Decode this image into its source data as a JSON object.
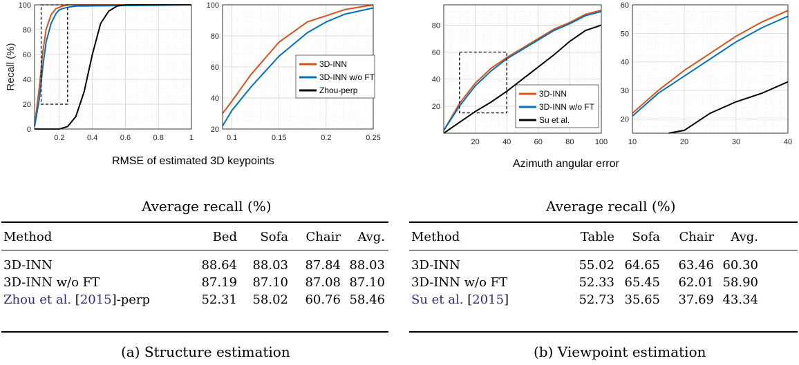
{
  "colors": {
    "inn": "#d95319",
    "inn_noft": "#0072bd",
    "base": "#000000"
  },
  "plots": {
    "a_left": {
      "ylabel": "Recall (%)",
      "xticks": [
        "0.2",
        "0.4",
        "0.6",
        "0.8",
        "1"
      ],
      "yticks": [
        "0",
        "20",
        "40",
        "60",
        "80",
        "100"
      ]
    },
    "a_right": {
      "xticks": [
        "0.1",
        "0.15",
        "0.2",
        "0.25"
      ],
      "yticks": [
        "20",
        "40",
        "60",
        "80",
        "100"
      ]
    },
    "a_legend": [
      "3D-INN",
      "3D-INN w/o FT",
      "Zhou-perp"
    ],
    "a_xlabel": "RMSE of estimated 3D keypoints",
    "b_left": {
      "xticks": [
        "20",
        "40",
        "60",
        "80",
        "100"
      ],
      "yticks": [
        "20",
        "40",
        "60",
        "80"
      ]
    },
    "b_right": {
      "xticks": [
        "10",
        "20",
        "30",
        "40"
      ],
      "yticks": [
        "20",
        "30",
        "40",
        "50",
        "60"
      ]
    },
    "b_legend": [
      "3D-INN",
      "3D-INN w/o FT",
      "Su et al."
    ],
    "b_xlabel": "Azimuth angular error"
  },
  "chart_data": [
    {
      "type": "line",
      "ylabel": "Recall (%)",
      "xlabel": "RMSE of estimated 3D keypoints",
      "xlim": [
        0.05,
        1
      ],
      "ylim": [
        0,
        100
      ],
      "grid": true,
      "series": [
        {
          "name": "3D-INN",
          "x": [
            0.05,
            0.08,
            0.1,
            0.12,
            0.15,
            0.18,
            0.2,
            0.22,
            0.25,
            0.3,
            1
          ],
          "y": [
            3,
            35,
            62,
            80,
            92,
            97,
            98,
            99,
            100,
            100,
            100
          ]
        },
        {
          "name": "3D-INN w/o FT",
          "x": [
            0.05,
            0.08,
            0.1,
            0.12,
            0.15,
            0.18,
            0.2,
            0.22,
            0.25,
            0.3,
            1
          ],
          "y": [
            2,
            25,
            50,
            70,
            85,
            93,
            96,
            97,
            98,
            99,
            100
          ]
        },
        {
          "name": "Zhou-perp",
          "x": [
            0.05,
            0.2,
            0.25,
            0.3,
            0.35,
            0.4,
            0.45,
            0.5,
            0.55,
            0.6,
            1
          ],
          "y": [
            0,
            0,
            2,
            10,
            30,
            60,
            85,
            95,
            99,
            100,
            100
          ]
        }
      ]
    },
    {
      "type": "line",
      "xlim": [
        0.09,
        0.25
      ],
      "ylim": [
        20,
        100
      ],
      "grid": true,
      "series": [
        {
          "name": "3D-INN",
          "x": [
            0.09,
            0.1,
            0.12,
            0.15,
            0.18,
            0.2,
            0.22,
            0.25
          ],
          "y": [
            30,
            38,
            55,
            76,
            89,
            93,
            97,
            100
          ]
        },
        {
          "name": "3D-INN w/o FT",
          "x": [
            0.09,
            0.1,
            0.12,
            0.15,
            0.18,
            0.2,
            0.22,
            0.25
          ],
          "y": [
            22,
            32,
            47,
            67,
            82,
            89,
            94,
            98
          ]
        }
      ]
    },
    {
      "type": "line",
      "xlabel": "Azimuth angular error",
      "xlim": [
        0,
        100
      ],
      "ylim": [
        0,
        95
      ],
      "grid": true,
      "series": [
        {
          "name": "3D-INN",
          "x": [
            0,
            10,
            20,
            30,
            40,
            50,
            60,
            70,
            80,
            90,
            100
          ],
          "y": [
            2,
            22,
            37,
            48,
            56,
            63,
            70,
            77,
            82,
            88,
            91
          ]
        },
        {
          "name": "3D-INN w/o FT",
          "x": [
            0,
            10,
            20,
            30,
            40,
            50,
            60,
            70,
            80,
            90,
            100
          ],
          "y": [
            2,
            20,
            35,
            46,
            55,
            62,
            69,
            76,
            81,
            87,
            90
          ]
        },
        {
          "name": "Su et al.",
          "x": [
            0,
            10,
            20,
            30,
            40,
            50,
            60,
            70,
            80,
            90,
            100
          ],
          "y": [
            0,
            8,
            16,
            23,
            31,
            40,
            49,
            58,
            68,
            76,
            80
          ]
        }
      ]
    },
    {
      "type": "line",
      "xlim": [
        10,
        40
      ],
      "ylim": [
        15,
        60
      ],
      "grid": true,
      "series": [
        {
          "name": "3D-INN",
          "x": [
            10,
            15,
            20,
            25,
            30,
            35,
            40
          ],
          "y": [
            22,
            30,
            37,
            43,
            49,
            54,
            58
          ]
        },
        {
          "name": "3D-INN w/o FT",
          "x": [
            10,
            15,
            20,
            25,
            30,
            35,
            40
          ],
          "y": [
            21,
            29,
            35,
            41,
            47,
            52,
            56
          ]
        },
        {
          "name": "Su et al.",
          "x": [
            17,
            20,
            25,
            30,
            35,
            40
          ],
          "y": [
            15,
            16,
            22,
            26,
            29,
            33
          ]
        }
      ]
    }
  ],
  "table_a": {
    "title": "Average recall (%)",
    "header": [
      "Method",
      "Bed",
      "Sofa",
      "Chair",
      "Avg."
    ],
    "rows": [
      {
        "method": "3D-INN",
        "cite": "",
        "suffix": "",
        "vals": [
          "88.64",
          "88.03",
          "87.84",
          "88.03"
        ],
        "bold": [
          true,
          true,
          true,
          true
        ]
      },
      {
        "method": "3D-INN w/o FT",
        "cite": "",
        "suffix": "",
        "vals": [
          "87.19",
          "87.10",
          "87.08",
          "87.10"
        ],
        "bold": [
          false,
          false,
          false,
          false
        ]
      },
      {
        "method": "Zhou et al. [",
        "cite": "2015",
        "suffix": "]-perp",
        "vals": [
          "52.31",
          "58.02",
          "60.76",
          "58.46"
        ],
        "bold": [
          false,
          false,
          false,
          false
        ]
      }
    ],
    "caption": "(a) Structure estimation"
  },
  "table_b": {
    "title": "Average recall (%)",
    "header": [
      "Method",
      "Table",
      "Sofa",
      "Chair",
      "Avg."
    ],
    "rows": [
      {
        "method": "3D-INN",
        "cite": "",
        "suffix": "",
        "vals": [
          "55.02",
          "64.65",
          "63.46",
          "60.30"
        ],
        "bold": [
          true,
          false,
          true,
          true
        ]
      },
      {
        "method": "3D-INN w/o FT",
        "cite": "",
        "suffix": "",
        "vals": [
          "52.33",
          "65.45",
          "62.01",
          "58.90"
        ],
        "bold": [
          false,
          true,
          false,
          false
        ]
      },
      {
        "method": "Su et al. [",
        "cite": "2015",
        "suffix": "]",
        "vals": [
          "52.73",
          "35.65",
          "37.69",
          "43.34"
        ],
        "bold": [
          false,
          false,
          false,
          false
        ]
      }
    ],
    "caption": "(b) Viewpoint estimation"
  }
}
